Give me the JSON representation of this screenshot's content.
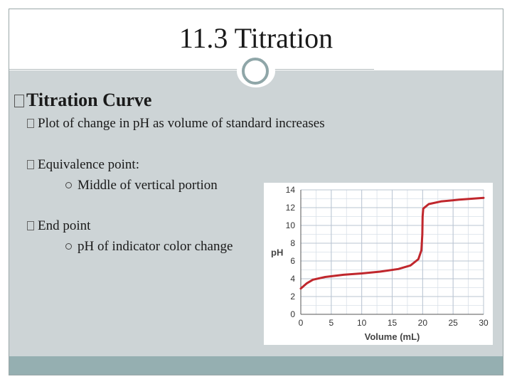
{
  "slide": {
    "title": "11.3 Titration",
    "heading": "Titration Curve",
    "bullets": [
      {
        "text": "Plot of change in pH as volume of standard increases",
        "subs": []
      },
      {
        "text": "Equivalence point:",
        "subs": [
          "Middle of vertical portion"
        ]
      },
      {
        "text": "End point",
        "subs": [
          "pH of indicator color change"
        ]
      }
    ]
  },
  "colors": {
    "curve": "#c0272d",
    "accent": "#8fa6a8",
    "content_bg": "#cdd4d6"
  },
  "chart_data": {
    "type": "line",
    "xlabel": "Volume (mL)",
    "ylabel": "pH",
    "xlim": [
      0,
      30
    ],
    "ylim": [
      0,
      14
    ],
    "xticks": [
      0,
      5,
      10,
      15,
      20,
      25,
      30
    ],
    "yticks": [
      0,
      2,
      4,
      6,
      8,
      10,
      12,
      14
    ],
    "grid": true,
    "series": [
      {
        "values": [
          [
            0,
            2.9
          ],
          [
            1,
            3.5
          ],
          [
            2,
            3.9
          ],
          [
            4,
            4.2
          ],
          [
            7,
            4.45
          ],
          [
            10,
            4.6
          ],
          [
            13,
            4.8
          ],
          [
            16,
            5.1
          ],
          [
            18,
            5.5
          ],
          [
            19.3,
            6.2
          ],
          [
            19.8,
            7.2
          ],
          [
            19.95,
            9.0
          ],
          [
            20,
            11.0
          ],
          [
            20.1,
            11.9
          ],
          [
            21,
            12.4
          ],
          [
            23,
            12.7
          ],
          [
            26,
            12.9
          ],
          [
            30,
            13.1
          ]
        ]
      }
    ]
  }
}
